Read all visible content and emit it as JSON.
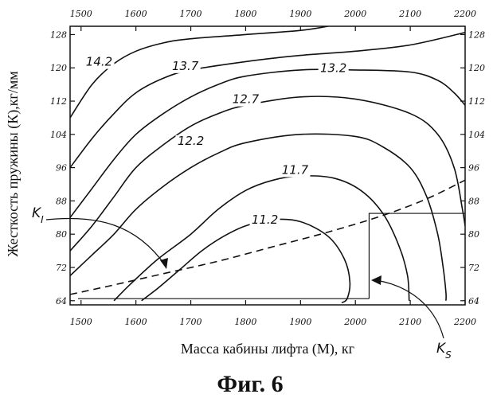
{
  "chart_data": {
    "type": "contour",
    "xlabel": "Масса кабины лифта (М), кг",
    "ylabel": "Жесткость пружины (К),кг/мм",
    "caption": "Фиг. 6",
    "xlim": [
      1480,
      2200
    ],
    "ylim": [
      63,
      130
    ],
    "x_ticks": [
      "1500",
      "1600",
      "1700",
      "1800",
      "1900",
      "2000",
      "2100",
      "2200"
    ],
    "y_ticks": [
      "64",
      "72",
      "80",
      "88",
      "96",
      "104",
      "112",
      "120",
      "128"
    ],
    "contours": [
      {
        "label": "14.2",
        "points": [
          [
            1480,
            108
          ],
          [
            1520,
            116
          ],
          [
            1560,
            121
          ],
          [
            1600,
            124
          ],
          [
            1650,
            126
          ],
          [
            1700,
            127
          ],
          [
            1800,
            128
          ],
          [
            1900,
            129
          ],
          [
            1950,
            130
          ]
        ]
      },
      {
        "label": "13.7",
        "points": [
          [
            1480,
            96
          ],
          [
            1520,
            103
          ],
          [
            1560,
            109
          ],
          [
            1600,
            114
          ],
          [
            1650,
            117.5
          ],
          [
            1700,
            119.5
          ],
          [
            1800,
            121.5
          ],
          [
            1900,
            123
          ],
          [
            2000,
            124
          ],
          [
            2100,
            125.5
          ],
          [
            2200,
            128.5
          ]
        ]
      },
      {
        "label": "13.2",
        "points": [
          [
            1480,
            84
          ],
          [
            1520,
            91
          ],
          [
            1560,
            98
          ],
          [
            1600,
            104
          ],
          [
            1650,
            109
          ],
          [
            1700,
            113
          ],
          [
            1750,
            116
          ],
          [
            1800,
            118
          ],
          [
            1900,
            119.5
          ],
          [
            2000,
            119.5
          ],
          [
            2100,
            119
          ],
          [
            2150,
            117
          ],
          [
            2180,
            114
          ],
          [
            2200,
            111
          ]
        ]
      },
      {
        "label": "12.7",
        "points": [
          [
            1480,
            76
          ],
          [
            1520,
            82
          ],
          [
            1560,
            89
          ],
          [
            1600,
            96
          ],
          [
            1650,
            101.5
          ],
          [
            1700,
            106
          ],
          [
            1750,
            109
          ],
          [
            1800,
            111
          ],
          [
            1900,
            113
          ],
          [
            2000,
            112.5
          ],
          [
            2100,
            109
          ],
          [
            2150,
            104
          ],
          [
            2180,
            96
          ],
          [
            2195,
            86
          ],
          [
            2200,
            82
          ]
        ]
      },
      {
        "label": "12.2",
        "points": [
          [
            1480,
            70
          ],
          [
            1520,
            75
          ],
          [
            1560,
            80
          ],
          [
            1600,
            86
          ],
          [
            1650,
            91.5
          ],
          [
            1700,
            96
          ],
          [
            1750,
            99.5
          ],
          [
            1800,
            102
          ],
          [
            1900,
            104
          ],
          [
            2000,
            103.5
          ],
          [
            2050,
            101
          ],
          [
            2100,
            96
          ],
          [
            2130,
            89
          ],
          [
            2150,
            80
          ],
          [
            2160,
            72
          ],
          [
            2165,
            66
          ],
          [
            2165,
            64
          ]
        ]
      },
      {
        "label": "11.7",
        "points": [
          [
            1560,
            64
          ],
          [
            1590,
            68
          ],
          [
            1640,
            74
          ],
          [
            1700,
            80
          ],
          [
            1750,
            86
          ],
          [
            1800,
            90.5
          ],
          [
            1850,
            93
          ],
          [
            1900,
            94
          ],
          [
            1960,
            93.5
          ],
          [
            2010,
            90.5
          ],
          [
            2050,
            85
          ],
          [
            2080,
            77
          ],
          [
            2095,
            70
          ],
          [
            2098,
            64
          ]
        ]
      },
      {
        "label": "11.2",
        "points": [
          [
            1610,
            64
          ],
          [
            1640,
            67
          ],
          [
            1680,
            71.5
          ],
          [
            1720,
            76
          ],
          [
            1760,
            79.5
          ],
          [
            1800,
            82
          ],
          [
            1850,
            83.5
          ],
          [
            1900,
            83
          ],
          [
            1950,
            79.5
          ],
          [
            1980,
            74
          ],
          [
            1990,
            68.5
          ],
          [
            1985,
            64.5
          ],
          [
            1975,
            63.5
          ]
        ]
      }
    ],
    "dashed_line": [
      [
        1480,
        65.5
      ],
      [
        1550,
        67.5
      ],
      [
        1650,
        70.5
      ],
      [
        1750,
        73.5
      ],
      [
        1850,
        77
      ],
      [
        1950,
        80.5
      ],
      [
        2050,
        84.5
      ],
      [
        2130,
        88.5
      ],
      [
        2200,
        93
      ]
    ],
    "region": {
      "x_left": 2025,
      "x_right": 2200,
      "y_low": 64.5,
      "y_high": 85
    },
    "baseline_y": 64.5,
    "annotations": [
      {
        "text": "K",
        "sub": "I"
      },
      {
        "text": "K",
        "sub": "S"
      }
    ]
  }
}
